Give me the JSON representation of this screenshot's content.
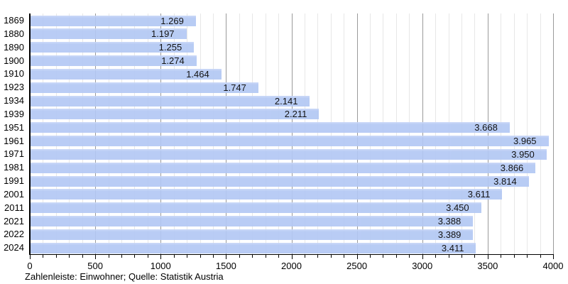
{
  "chart_data": {
    "type": "bar",
    "orientation": "horizontal",
    "title": "",
    "xlabel": "",
    "ylabel": "",
    "categories": [
      "1869",
      "1880",
      "1890",
      "1900",
      "1910",
      "1923",
      "1934",
      "1939",
      "1951",
      "1961",
      "1971",
      "1981",
      "1991",
      "2001",
      "2011",
      "2021",
      "2022",
      "2024"
    ],
    "values": [
      1269,
      1197,
      1255,
      1274,
      1464,
      1747,
      2141,
      2211,
      3668,
      3965,
      3950,
      3866,
      3814,
      3611,
      3450,
      3388,
      3389,
      3411
    ],
    "value_labels": [
      "1.269",
      "1.197",
      "1.255",
      "1.274",
      "1.464",
      "1.747",
      "2.141",
      "2.211",
      "3.668",
      "3.965",
      "3.950",
      "3.866",
      "3.814",
      "3.611",
      "3.450",
      "3.388",
      "3.389",
      "3.411"
    ],
    "xlim": [
      0,
      4000
    ],
    "x_ticks": [
      0,
      500,
      1000,
      1500,
      2000,
      2500,
      3000,
      3500,
      4000
    ],
    "x_tick_labels": [
      "0",
      "500",
      "1000",
      "1500",
      "2000",
      "2500",
      "3000",
      "3500",
      "4000"
    ],
    "x_minor_step": 100,
    "grid": "on",
    "legend": "none",
    "caption": "Zahlenleiste: Einwohner; Quelle: Statistik Austria",
    "colors": {
      "bar": "#b3c8f4",
      "bar_top_highlight": "#c9d7f8",
      "minor_grid": "#e7e7e7",
      "major_grid": "#9a9a9a",
      "axis": "#000000",
      "text": "#000000",
      "background": "#ffffff"
    }
  }
}
